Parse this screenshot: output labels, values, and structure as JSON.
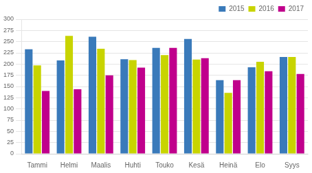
{
  "chart_data": {
    "type": "bar",
    "categories": [
      "Tammi",
      "Helmi",
      "Maalis",
      "Huhti",
      "Touko",
      "Kesä",
      "Heinä",
      "Elo",
      "Syys"
    ],
    "series": [
      {
        "name": "2015",
        "color": "#3a7aba",
        "values": [
          233,
          208,
          261,
          211,
          236,
          256,
          164,
          193,
          216
        ]
      },
      {
        "name": "2016",
        "color": "#c8d400",
        "values": [
          197,
          263,
          234,
          209,
          220,
          210,
          136,
          205,
          216
        ]
      },
      {
        "name": "2017",
        "color": "#c0008c",
        "values": [
          140,
          144,
          175,
          192,
          236,
          213,
          164,
          184,
          178
        ]
      }
    ],
    "ylim": [
      0,
      300
    ],
    "yticks": [
      0,
      25,
      50,
      75,
      100,
      125,
      150,
      175,
      200,
      225,
      250,
      275,
      300
    ],
    "grid": true,
    "legend": "upper right"
  }
}
